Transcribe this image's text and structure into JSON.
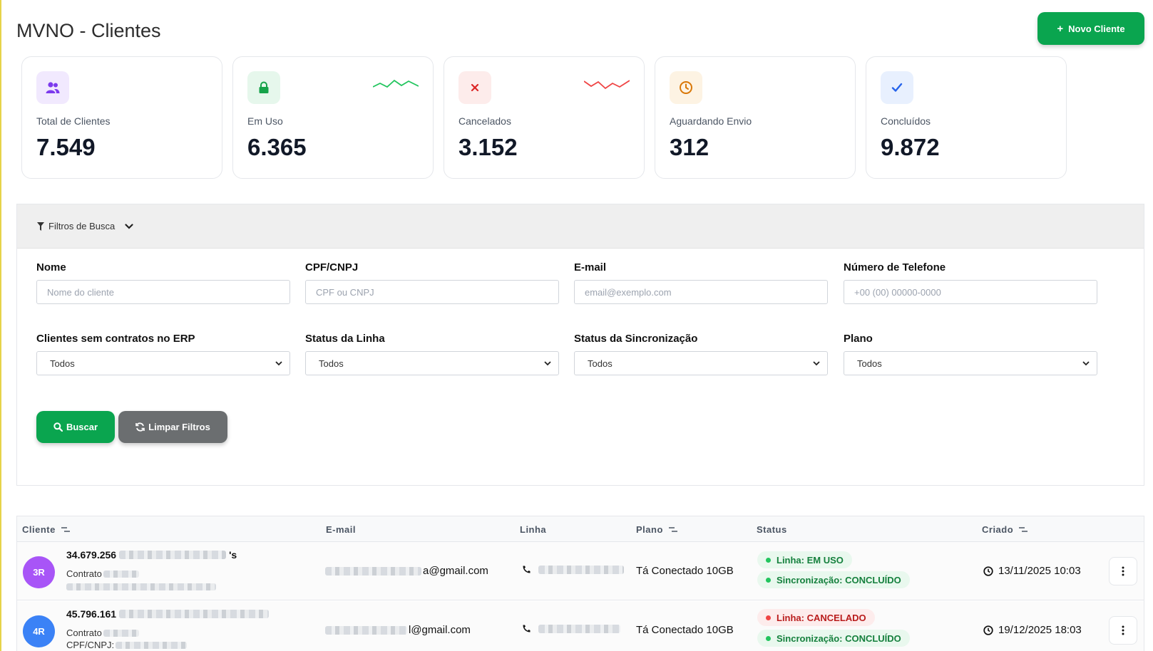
{
  "header": {
    "title": "MVNO - Clientes",
    "new_client_label": "Novo Cliente"
  },
  "stats": [
    {
      "label": "Total de Clientes",
      "value": "7.549",
      "icon": "users-icon",
      "accent": "#7c3aed"
    },
    {
      "label": "Em Uso",
      "value": "6.365",
      "icon": "lock-icon",
      "accent": "#16a34a"
    },
    {
      "label": "Cancelados",
      "value": "3.152",
      "icon": "x-icon",
      "accent": "#dc2626"
    },
    {
      "label": "Aguardando Envio",
      "value": "312",
      "icon": "clock-icon",
      "accent": "#d97706"
    },
    {
      "label": "Concluídos",
      "value": "9.872",
      "icon": "check-icon",
      "accent": "#2563eb"
    }
  ],
  "filters": {
    "title": "Filtros de Busca",
    "nome": {
      "label": "Nome",
      "placeholder": "Nome do cliente"
    },
    "cpf": {
      "label": "CPF/CNPJ",
      "placeholder": "CPF ou CNPJ"
    },
    "email": {
      "label": "E-mail",
      "placeholder": "email@exemplo.com"
    },
    "telefone": {
      "label": "Número de Telefone",
      "placeholder": "+00 (00) 00000-0000"
    },
    "sem_contratos": {
      "label": "Clientes sem contratos no ERP",
      "value": "Todos"
    },
    "status_linha": {
      "label": "Status da Linha",
      "value": "Todos"
    },
    "status_sync": {
      "label": "Status da Sincronização",
      "value": "Todos"
    },
    "plano": {
      "label": "Plano",
      "value": "Todos"
    },
    "search_label": "Buscar",
    "clear_label": "Limpar Filtros"
  },
  "table": {
    "columns": {
      "cliente": "Cliente",
      "email": "E-mail",
      "linha": "Linha",
      "plano": "Plano",
      "status": "Status",
      "criado": "Criado"
    },
    "rows": [
      {
        "initials": "3R",
        "avatar_color": "#a855f7",
        "doc": "34.679.256",
        "name_suffix": "'s",
        "contract_label": "Contrato",
        "email_suffix": "a@gmail.com",
        "plan": "Tá Conectado 10GB",
        "line_status": "Linha: EM USO",
        "sync_status": "Sincronização: CONCLUÍDO",
        "created": "13/11/2025 10:03"
      },
      {
        "initials": "4R",
        "avatar_color": "#3b82f6",
        "doc": "45.796.161",
        "contract_label": "Contrato",
        "cpf_label": "CPF/CNPJ:",
        "email_suffix": "l@gmail.com",
        "plan": "Tá Conectado 10GB",
        "line_status": "Linha: CANCELADO",
        "sync_status": "Sincronização: CONCLUÍDO",
        "created": "19/12/2025 18:03"
      }
    ]
  }
}
